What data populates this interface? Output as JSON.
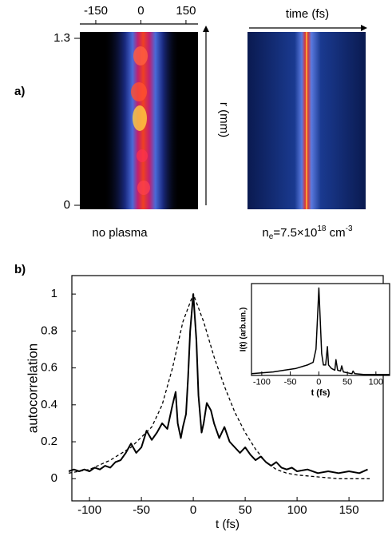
{
  "panel_a": {
    "label": "a)",
    "xticks": [
      -150,
      0,
      150
    ],
    "xlim": [
      -203,
      190
    ],
    "rticks": [
      0,
      1.3
    ],
    "rlim": [
      0,
      1.3
    ],
    "time_label": "time (fs)",
    "r_label": "r (mm)",
    "left_caption": "no plasma",
    "right_caption": {
      "symbol": "n",
      "sub": "e",
      "mid": "=7.5×10",
      "sup": "18",
      "unit": " cm",
      "unit_sup": "-3"
    }
  },
  "chart_data": [
    {
      "type": "line",
      "label": "b)",
      "ylabel": "autocorrelation",
      "xlabel": "t (fs)",
      "xlim": [
        -117,
        183
      ],
      "ylim": [
        -0.12,
        1.1
      ],
      "xticks": [
        -100,
        -50,
        0,
        50,
        100,
        150
      ],
      "yticks": [
        0,
        0.2,
        0.4,
        0.6,
        0.8,
        1
      ],
      "series": [
        {
          "style": "solid",
          "color": "#000000",
          "x": [
            -120,
            -115,
            -110,
            -105,
            -100,
            -95,
            -90,
            -85,
            -80,
            -75,
            -70,
            -65,
            -60,
            -55,
            -50,
            -45,
            -40,
            -35,
            -30,
            -25,
            -20,
            -17,
            -15,
            -12,
            -10,
            -7,
            -5,
            -3,
            0,
            3,
            5,
            8,
            10,
            13,
            17,
            20,
            25,
            30,
            35,
            40,
            45,
            50,
            55,
            60,
            65,
            70,
            75,
            80,
            85,
            90,
            95,
            100,
            110,
            120,
            130,
            140,
            150,
            160,
            168
          ],
          "values": [
            0.04,
            0.05,
            0.04,
            0.05,
            0.04,
            0.06,
            0.05,
            0.07,
            0.06,
            0.09,
            0.1,
            0.14,
            0.19,
            0.14,
            0.17,
            0.26,
            0.21,
            0.25,
            0.3,
            0.27,
            0.4,
            0.47,
            0.3,
            0.22,
            0.28,
            0.35,
            0.55,
            0.8,
            1.0,
            0.75,
            0.45,
            0.25,
            0.3,
            0.41,
            0.37,
            0.3,
            0.22,
            0.28,
            0.2,
            0.17,
            0.14,
            0.17,
            0.13,
            0.1,
            0.12,
            0.09,
            0.07,
            0.09,
            0.06,
            0.05,
            0.06,
            0.04,
            0.05,
            0.03,
            0.04,
            0.03,
            0.04,
            0.03,
            0.05
          ]
        },
        {
          "style": "dashed",
          "color": "#000000",
          "x": [
            -120,
            -100,
            -80,
            -60,
            -40,
            -30,
            -20,
            -10,
            0,
            10,
            20,
            30,
            40,
            50,
            60,
            70,
            80,
            90,
            100,
            120,
            140,
            170
          ],
          "values": [
            0.03,
            0.05,
            0.1,
            0.17,
            0.28,
            0.4,
            0.6,
            0.85,
            1.0,
            0.85,
            0.66,
            0.5,
            0.36,
            0.25,
            0.16,
            0.09,
            0.05,
            0.03,
            0.02,
            0.01,
            0.0,
            0.0
          ]
        }
      ]
    },
    {
      "type": "line",
      "ylabel": "I(t) (arb.un.)",
      "xlabel": "t (fs)",
      "xlim": [
        -118,
        124
      ],
      "ylim": [
        0,
        1.05
      ],
      "xticks": [
        -100,
        -50,
        0,
        50,
        100
      ],
      "series": [
        {
          "style": "solid",
          "color": "#000000",
          "x": [
            -118,
            -100,
            -80,
            -60,
            -40,
            -20,
            -10,
            -5,
            -2,
            0,
            2,
            5,
            8,
            12,
            15,
            17,
            22,
            28,
            30,
            33,
            38,
            40,
            43,
            50,
            58,
            60,
            63,
            80,
            100,
            124
          ],
          "values": [
            0.02,
            0.03,
            0.04,
            0.06,
            0.08,
            0.12,
            0.15,
            0.3,
            0.7,
            1.0,
            0.7,
            0.25,
            0.12,
            0.12,
            0.33,
            0.12,
            0.08,
            0.06,
            0.18,
            0.06,
            0.05,
            0.11,
            0.04,
            0.03,
            0.02,
            0.05,
            0.02,
            0.01,
            0.01,
            0.01
          ]
        }
      ]
    }
  ]
}
